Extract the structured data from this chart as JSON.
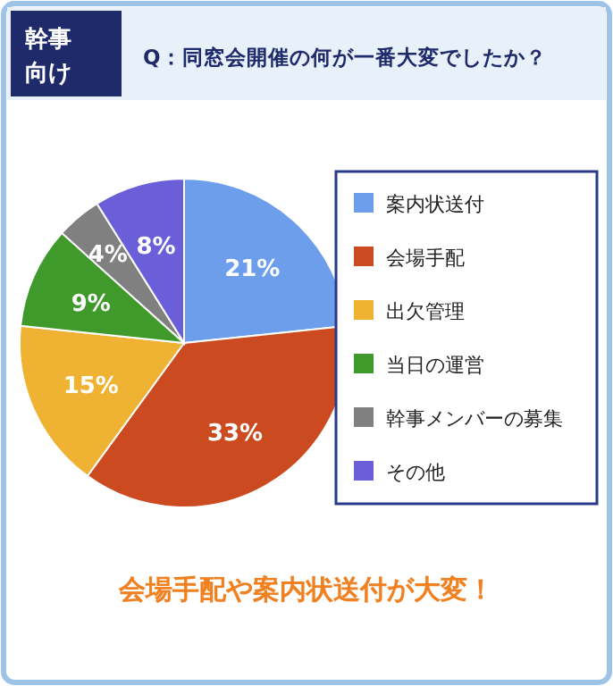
{
  "chart_data": {
    "type": "pie",
    "title": "Q：同窓会開催の何が一番大変でしたか？",
    "annotations": [
      "幹事向け",
      "会場手配や案内状送付が大変！"
    ],
    "categories": [
      "案内状送付",
      "会場手配",
      "出欠管理",
      "当日の運営",
      "幹事メンバーの募集",
      "その他"
    ],
    "values": [
      21,
      33,
      15,
      9,
      4,
      8
    ],
    "colors": [
      "#6d9eeb",
      "#cc4a1f",
      "#f0b232",
      "#3f9a2b",
      "#808080",
      "#6a5fd8"
    ],
    "value_labels": [
      "21%",
      "33%",
      "15%",
      "9%",
      "4%",
      "8%"
    ],
    "legend": "right"
  }
}
